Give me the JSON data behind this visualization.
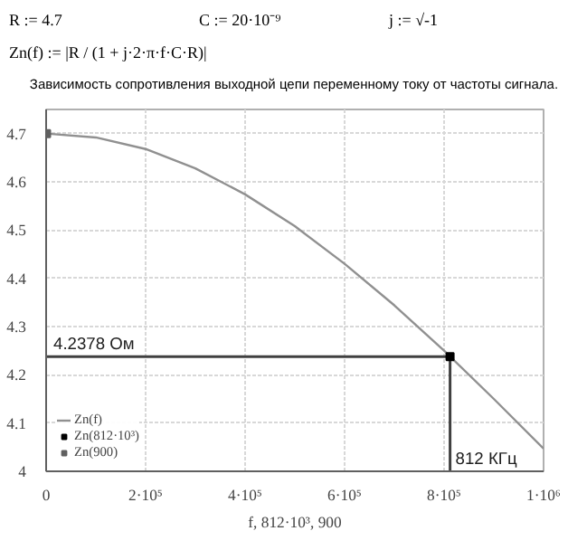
{
  "chart_data": {
    "type": "line",
    "title": "Зависимость сопротивления выходной цепи переменному току от частоты сигнала.",
    "annotations": [
      "R := 4.7",
      "C := 20·10⁻⁹",
      "j := √-1",
      "Zn(f) := |R / (1 + j·2·π·f·C·R)|"
    ],
    "xlabel": "f, 812·10³, 900",
    "x": [
      0,
      100000,
      200000,
      300000,
      400000,
      500000,
      600000,
      700000,
      800000,
      900000,
      1000000
    ],
    "series": [
      {
        "name": "Zn(f)",
        "color": "#909090",
        "values": [
          4.7,
          4.692,
          4.668,
          4.628,
          4.574,
          4.508,
          4.43,
          4.344,
          4.25,
          4.15,
          4.047
        ]
      },
      {
        "name": "Zn(812·10³)",
        "type": "scatter",
        "marker": "square",
        "color": "#000000",
        "x": [
          812000
        ],
        "values": [
          4.2378
        ]
      },
      {
        "name": "Zn(900)",
        "type": "scatter",
        "marker": "square",
        "color": "#606060",
        "x": [
          900
        ],
        "values": [
          4.7
        ]
      }
    ],
    "ref_lines": [
      {
        "axis": "y",
        "value": 4.2378,
        "label": "4.2378 Ом",
        "color": "#404040"
      },
      {
        "axis": "x",
        "value": 812000,
        "label": "812 КГц",
        "color": "#404040"
      }
    ],
    "xlim": [
      0,
      1000000
    ],
    "ylim": [
      4,
      4.75
    ],
    "xticks": [
      0,
      {
        "value": 200000,
        "label": "2·10⁵"
      },
      {
        "value": 400000,
        "label": "4·10⁵"
      },
      {
        "value": 600000,
        "label": "6·10⁵"
      },
      {
        "value": 800000,
        "label": "8·10⁵"
      },
      {
        "value": 1000000,
        "label": "1·10⁶"
      }
    ],
    "yticks": [
      4,
      4.1,
      4.2,
      4.3,
      4.4,
      4.5,
      4.6,
      4.7
    ],
    "grid": true,
    "legend": "bottom left",
    "marker": "none"
  }
}
